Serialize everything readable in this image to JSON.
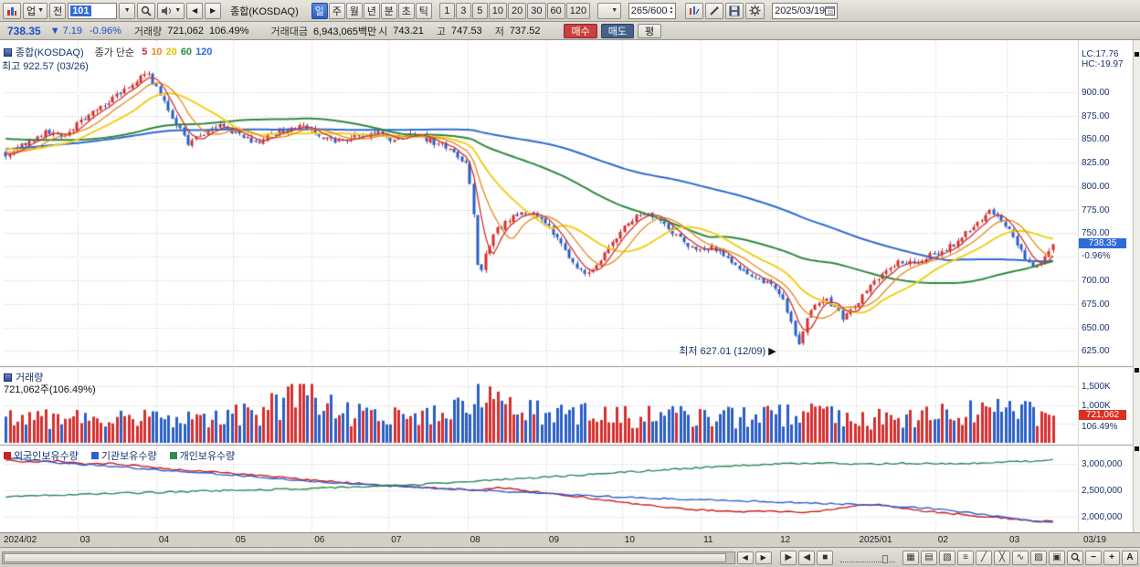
{
  "colors": {
    "up": "#d62f2f",
    "down": "#2b5fc7",
    "ma5": "#cf3333",
    "ma10": "#e8881e",
    "ma20": "#f0d020",
    "ma60": "#2e8b3d",
    "ma120": "#2d6bd0",
    "foreign": "#cc2020",
    "institution": "#2d5fd0",
    "individual": "#2e8b57",
    "accent_blue": "#2f6bd8",
    "tag_red": "#d93025",
    "navy": "#17326e"
  },
  "toolbar": {
    "dropdown_up": "업",
    "btn_jeon": "전",
    "code_value": "101",
    "symbol_label": "종합(KOSDAQ)",
    "periods": [
      "일",
      "주",
      "월",
      "년",
      "분",
      "초",
      "틱"
    ],
    "active_period": "일",
    "intervals": [
      "1",
      "3",
      "5",
      "10",
      "20",
      "30",
      "60",
      "120"
    ],
    "bar_count": "265/600",
    "date": "2025/03/19"
  },
  "quote": {
    "price": "738.35",
    "arrow": "▼",
    "change": "7.19",
    "change_pct": "-0.96%",
    "volume_label": "거래량",
    "volume": "721,062",
    "volume_pct": "106.49%",
    "value_label": "거래대금",
    "value": "6,943,065백만",
    "open_label": "시",
    "open": "743.21",
    "high_label": "고",
    "high": "747.53",
    "low_label": "저",
    "low": "737.52",
    "buy_label": "매수",
    "sell_label": "매도",
    "avg_label": "평"
  },
  "panels": {
    "main": {
      "title": "종합(KOSDAQ)",
      "legend_prefix": "종가 단순",
      "ma_legend": [
        [
          "5",
          "#cf3333"
        ],
        [
          "10",
          "#e8881e"
        ],
        [
          "20",
          "#e3c000"
        ],
        [
          "60",
          "#2e8b3d"
        ],
        [
          "120",
          "#2d6bd0"
        ]
      ],
      "high_note": "최고 922.57 (03/26)",
      "low_note": "최저 627.01 (12/09)"
    },
    "volume": {
      "title": "거래량",
      "subtitle": "721,062주(106.49%)"
    },
    "holdings": {
      "legend": [
        [
          "외국인보유수량",
          "#cc2020"
        ],
        [
          "기관보유수량",
          "#2d5fd0"
        ],
        [
          "개인보유수량",
          "#2e8b57"
        ]
      ]
    }
  },
  "right_axis": {
    "lc": "LC:17.76",
    "hc": "HC:-19.97",
    "price_labels": [
      [
        900,
        "900.00"
      ],
      [
        875,
        "875.00"
      ],
      [
        850,
        "850.00"
      ],
      [
        825,
        "825.00"
      ],
      [
        800,
        "800.00"
      ],
      [
        775,
        "775.00"
      ],
      [
        750,
        "750.00"
      ],
      [
        700,
        "700.00"
      ],
      [
        675,
        "675.00"
      ],
      [
        650,
        "650.00"
      ],
      [
        625,
        "625.00"
      ]
    ],
    "price_tag": {
      "v": 738.35,
      "text": "738.35",
      "pct": "-0.96%"
    },
    "volume_labels": [
      [
        1500,
        "1,500K"
      ],
      [
        1000,
        "1,000K"
      ]
    ],
    "volume_tag": {
      "v": 721,
      "text": "721,062",
      "pct": "106.49%"
    },
    "holdings_labels": [
      [
        3000000,
        "3,000,000"
      ],
      [
        2500000,
        "2,500,000"
      ],
      [
        2000000,
        "2,000,000"
      ]
    ]
  },
  "x_axis": {
    "labels": [
      "2024/02",
      "03",
      "04",
      "05",
      "06",
      "07",
      "08",
      "09",
      "10",
      "11",
      "12",
      "2025/01",
      "02",
      "03"
    ],
    "boundaries": [
      0,
      0.07,
      0.145,
      0.218,
      0.293,
      0.366,
      0.441,
      0.516,
      0.588,
      0.663,
      0.736,
      0.811,
      0.886,
      0.954
    ],
    "right_label": "03/19"
  },
  "bottom_bar": {
    "left_arrow": "◀",
    "right_arrow": "▶",
    "tools": [
      [
        "play-icon",
        "▶"
      ],
      [
        "back-icon",
        "◀"
      ],
      [
        "stop-icon",
        "■"
      ]
    ],
    "icons": [
      [
        "grid-chart-icon",
        "▦"
      ],
      [
        "panes-icon",
        "▤"
      ],
      [
        "pattern-icon",
        "▧"
      ],
      [
        "compare-icon",
        "≡"
      ],
      [
        "trendline-icon",
        "╱"
      ],
      [
        "cross-tool-icon",
        "╳"
      ],
      [
        "wave-tool-icon",
        "∿"
      ],
      [
        "hatch-tool-icon",
        "▨"
      ],
      [
        "save-layout-icon",
        "▣"
      ]
    ],
    "zoom_out": "−",
    "zoom_in": "+",
    "auto_label": "A"
  },
  "chart_data": {
    "type": "candlestick+volume+lines",
    "title": "종합(KOSDAQ) daily",
    "x_range": [
      "2024/02",
      "2025/03/19"
    ],
    "candles": 265,
    "last_close": 738.35,
    "high_point": {
      "value": 922.57,
      "date": "03/26",
      "t": 0.135
    },
    "low_point": {
      "value": 627.01,
      "date": "12/09",
      "t": 0.757
    },
    "ma_periods": [
      5,
      10,
      20,
      60,
      120
    ],
    "price_axis": {
      "min": 608,
      "max": 955,
      "gridlines": [
        625,
        650,
        675,
        700,
        725,
        750,
        775,
        800,
        825,
        850,
        875,
        900
      ]
    },
    "pre_anchors": [
      [
        -0.45,
        800
      ],
      [
        -0.35,
        825
      ],
      [
        -0.25,
        850
      ],
      [
        -0.15,
        860
      ],
      [
        -0.08,
        850
      ],
      [
        0,
        832
      ]
    ],
    "price_anchors": [
      [
        0,
        832
      ],
      [
        0.02,
        846
      ],
      [
        0.04,
        858
      ],
      [
        0.055,
        852
      ],
      [
        0.07,
        868
      ],
      [
        0.09,
        884
      ],
      [
        0.11,
        900
      ],
      [
        0.125,
        912
      ],
      [
        0.135,
        920
      ],
      [
        0.145,
        902
      ],
      [
        0.155,
        880
      ],
      [
        0.165,
        862
      ],
      [
        0.175,
        845
      ],
      [
        0.19,
        856
      ],
      [
        0.205,
        866
      ],
      [
        0.22,
        856
      ],
      [
        0.24,
        846
      ],
      [
        0.26,
        857
      ],
      [
        0.28,
        864
      ],
      [
        0.295,
        858
      ],
      [
        0.315,
        846
      ],
      [
        0.335,
        853
      ],
      [
        0.355,
        858
      ],
      [
        0.37,
        849
      ],
      [
        0.39,
        856
      ],
      [
        0.41,
        846
      ],
      [
        0.425,
        840
      ],
      [
        0.441,
        822
      ],
      [
        0.448,
        762
      ],
      [
        0.452,
        700
      ],
      [
        0.458,
        726
      ],
      [
        0.468,
        752
      ],
      [
        0.482,
        766
      ],
      [
        0.5,
        772
      ],
      [
        0.515,
        762
      ],
      [
        0.53,
        738
      ],
      [
        0.545,
        714
      ],
      [
        0.555,
        706
      ],
      [
        0.57,
        726
      ],
      [
        0.585,
        750
      ],
      [
        0.6,
        766
      ],
      [
        0.615,
        772
      ],
      [
        0.63,
        758
      ],
      [
        0.645,
        743
      ],
      [
        0.66,
        729
      ],
      [
        0.675,
        736
      ],
      [
        0.69,
        722
      ],
      [
        0.705,
        709
      ],
      [
        0.72,
        701
      ],
      [
        0.735,
        692
      ],
      [
        0.745,
        672
      ],
      [
        0.757,
        632
      ],
      [
        0.768,
        666
      ],
      [
        0.78,
        682
      ],
      [
        0.793,
        670
      ],
      [
        0.8,
        660
      ],
      [
        0.811,
        673
      ],
      [
        0.825,
        694
      ],
      [
        0.84,
        711
      ],
      [
        0.855,
        721
      ],
      [
        0.87,
        717
      ],
      [
        0.882,
        726
      ],
      [
        0.895,
        731
      ],
      [
        0.91,
        742
      ],
      [
        0.925,
        759
      ],
      [
        0.94,
        774
      ],
      [
        0.95,
        766
      ],
      [
        0.956,
        757
      ],
      [
        0.965,
        741
      ],
      [
        0.975,
        719
      ],
      [
        0.985,
        713
      ],
      [
        0.992,
        727
      ],
      [
        1,
        738.35
      ]
    ],
    "volume_axis": {
      "max_k": 1500,
      "gridlines_k": [
        500,
        1000,
        1500
      ]
    },
    "volume_anchors": [
      [
        0,
        620
      ],
      [
        0.05,
        660
      ],
      [
        0.09,
        720
      ],
      [
        0.12,
        640
      ],
      [
        0.16,
        600
      ],
      [
        0.2,
        640
      ],
      [
        0.24,
        760
      ],
      [
        0.265,
        1050
      ],
      [
        0.28,
        1480
      ],
      [
        0.295,
        1100
      ],
      [
        0.32,
        820
      ],
      [
        0.36,
        700
      ],
      [
        0.4,
        660
      ],
      [
        0.435,
        900
      ],
      [
        0.452,
        1320
      ],
      [
        0.47,
        1050
      ],
      [
        0.5,
        820
      ],
      [
        0.54,
        780
      ],
      [
        0.58,
        720
      ],
      [
        0.62,
        700
      ],
      [
        0.66,
        680
      ],
      [
        0.7,
        660
      ],
      [
        0.73,
        700
      ],
      [
        0.757,
        860
      ],
      [
        0.78,
        700
      ],
      [
        0.81,
        620
      ],
      [
        0.85,
        640
      ],
      [
        0.88,
        680
      ],
      [
        0.91,
        760
      ],
      [
        0.935,
        980
      ],
      [
        0.955,
        860
      ],
      [
        0.975,
        760
      ],
      [
        1,
        721
      ]
    ],
    "last_volume_k": 721.062,
    "holdings_axis": {
      "min": 1750000,
      "max": 3300000,
      "gridlines": [
        2000000,
        2500000,
        3000000
      ]
    },
    "holdings_series": [
      {
        "name": "foreign",
        "color": "#cc2020",
        "anchors": [
          [
            0,
            3080000
          ],
          [
            0.02,
            3040000
          ],
          [
            0.05,
            3060000
          ],
          [
            0.08,
            3000000
          ],
          [
            0.1,
            3020000
          ],
          [
            0.13,
            2960000
          ],
          [
            0.16,
            2900000
          ],
          [
            0.2,
            2850000
          ],
          [
            0.24,
            2790000
          ],
          [
            0.28,
            2720000
          ],
          [
            0.32,
            2660000
          ],
          [
            0.36,
            2600000
          ],
          [
            0.4,
            2560000
          ],
          [
            0.43,
            2530000
          ],
          [
            0.45,
            2500000
          ],
          [
            0.47,
            2570000
          ],
          [
            0.49,
            2520000
          ],
          [
            0.52,
            2440000
          ],
          [
            0.55,
            2380000
          ],
          [
            0.58,
            2300000
          ],
          [
            0.61,
            2230000
          ],
          [
            0.64,
            2170000
          ],
          [
            0.67,
            2130000
          ],
          [
            0.7,
            2100000
          ],
          [
            0.73,
            2120000
          ],
          [
            0.76,
            2090000
          ],
          [
            0.79,
            2150000
          ],
          [
            0.81,
            2220000
          ],
          [
            0.83,
            2240000
          ],
          [
            0.85,
            2190000
          ],
          [
            0.87,
            2130000
          ],
          [
            0.89,
            2090000
          ],
          [
            0.91,
            2060000
          ],
          [
            0.93,
            2020000
          ],
          [
            0.95,
            1990000
          ],
          [
            0.97,
            1950000
          ],
          [
            0.985,
            1920000
          ],
          [
            1,
            1940000
          ]
        ]
      },
      {
        "name": "institution",
        "color": "#2d5fd0",
        "anchors": [
          [
            0,
            3120000
          ],
          [
            0.05,
            3030000
          ],
          [
            0.1,
            2960000
          ],
          [
            0.15,
            2890000
          ],
          [
            0.2,
            2820000
          ],
          [
            0.25,
            2740000
          ],
          [
            0.3,
            2670000
          ],
          [
            0.35,
            2610000
          ],
          [
            0.4,
            2560000
          ],
          [
            0.45,
            2510000
          ],
          [
            0.5,
            2460000
          ],
          [
            0.55,
            2410000
          ],
          [
            0.6,
            2370000
          ],
          [
            0.65,
            2340000
          ],
          [
            0.7,
            2310000
          ],
          [
            0.75,
            2280000
          ],
          [
            0.8,
            2250000
          ],
          [
            0.85,
            2210000
          ],
          [
            0.88,
            2170000
          ],
          [
            0.91,
            2110000
          ],
          [
            0.94,
            2030000
          ],
          [
            0.97,
            1960000
          ],
          [
            1,
            1900000
          ]
        ]
      },
      {
        "name": "individual",
        "color": "#2e8b57",
        "anchors": [
          [
            0,
            2380000
          ],
          [
            0.05,
            2420000
          ],
          [
            0.1,
            2450000
          ],
          [
            0.15,
            2470000
          ],
          [
            0.2,
            2500000
          ],
          [
            0.25,
            2520000
          ],
          [
            0.3,
            2550000
          ],
          [
            0.35,
            2580000
          ],
          [
            0.4,
            2620000
          ],
          [
            0.45,
            2680000
          ],
          [
            0.5,
            2740000
          ],
          [
            0.55,
            2800000
          ],
          [
            0.6,
            2860000
          ],
          [
            0.65,
            2920000
          ],
          [
            0.7,
            2980000
          ],
          [
            0.74,
            3010000
          ],
          [
            0.78,
            3020000
          ],
          [
            0.82,
            3000000
          ],
          [
            0.86,
            3020000
          ],
          [
            0.9,
            3010000
          ],
          [
            0.94,
            3030000
          ],
          [
            0.97,
            3050000
          ],
          [
            1,
            3080000
          ]
        ]
      }
    ],
    "month_boundaries": [
      0,
      0.07,
      0.145,
      0.218,
      0.293,
      0.366,
      0.441,
      0.516,
      0.588,
      0.663,
      0.736,
      0.811,
      0.886,
      0.954
    ]
  }
}
